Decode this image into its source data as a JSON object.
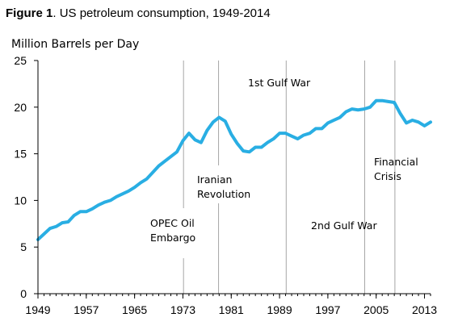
{
  "figure": {
    "label": "Figure 1",
    "caption": ". US petroleum consumption, 1949-2014"
  },
  "colors": {
    "series": "#29aee3",
    "event_line": "#a6a6a6",
    "axis": "#000000"
  },
  "chart_data": {
    "type": "line",
    "title": "US petroleum consumption, 1949-2014",
    "ylabel": "Million Barrels per Day",
    "xlabel": "",
    "xlim": [
      1949,
      2014
    ],
    "ylim": [
      0,
      25
    ],
    "yticks": [
      0,
      5,
      10,
      15,
      20,
      25
    ],
    "xticks": [
      1949,
      1957,
      1965,
      1973,
      1981,
      1989,
      1997,
      2005,
      2013
    ],
    "grid": false,
    "legend": "none",
    "series": [
      {
        "x": [
          1949,
          1950,
          1951,
          1952,
          1953,
          1954,
          1955,
          1956,
          1957,
          1958,
          1959,
          1960,
          1961,
          1962,
          1963,
          1964,
          1965,
          1966,
          1967,
          1968,
          1969,
          1970,
          1971,
          1972,
          1973,
          1974,
          1975,
          1976,
          1977,
          1978,
          1979,
          1980,
          1981,
          1982,
          1983,
          1984,
          1985,
          1986,
          1987,
          1988,
          1989,
          1990,
          1991,
          1992,
          1993,
          1994,
          1995,
          1996,
          1997,
          1998,
          1999,
          2000,
          2001,
          2002,
          2003,
          2004,
          2005,
          2006,
          2007,
          2008,
          2009,
          2010,
          2011,
          2012,
          2013,
          2014
        ],
        "values": [
          5.8,
          6.4,
          7.0,
          7.2,
          7.6,
          7.7,
          8.4,
          8.8,
          8.8,
          9.1,
          9.5,
          9.8,
          10.0,
          10.4,
          10.7,
          11.0,
          11.4,
          11.9,
          12.3,
          13.0,
          13.7,
          14.2,
          14.7,
          15.2,
          16.4,
          17.2,
          16.5,
          16.2,
          17.5,
          18.4,
          18.9,
          18.5,
          17.1,
          16.1,
          15.3,
          15.2,
          15.7,
          15.7,
          16.2,
          16.6,
          17.2,
          17.2,
          16.9,
          16.6,
          17.0,
          17.2,
          17.7,
          17.7,
          18.3,
          18.6,
          18.9,
          19.5,
          19.8,
          19.7,
          19.8,
          20.0,
          20.7,
          20.7,
          20.6,
          20.5,
          19.3,
          18.3,
          18.6,
          18.4,
          18.0,
          18.4
        ]
      }
    ],
    "event_lines": [
      1973.1,
      1978.9,
      1990.1,
      2003.1,
      2008.1
    ],
    "annotations": [
      {
        "lines": [
          "OPEC Oil",
          "Embargo"
        ]
      },
      {
        "lines": [
          "Iranian",
          "Revolution"
        ]
      },
      {
        "lines": [
          "1st Gulf War"
        ]
      },
      {
        "lines": [
          "2nd Gulf War"
        ]
      },
      {
        "lines": [
          "Financial",
          "Crisis"
        ]
      }
    ]
  }
}
